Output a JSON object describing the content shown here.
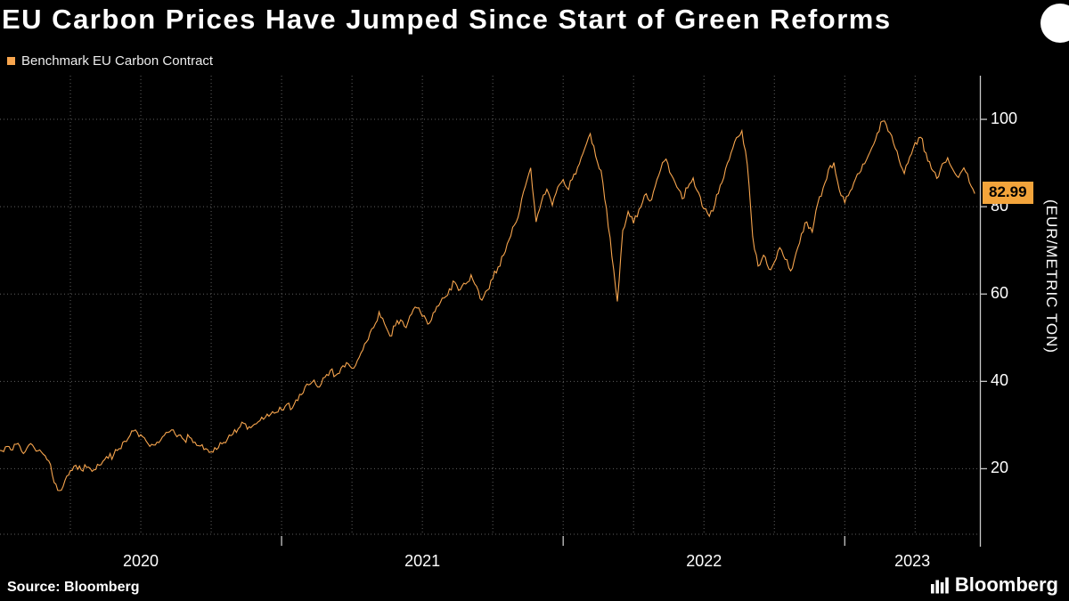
{
  "title": "EU Carbon Prices Have Jumped Since Start of Green Reforms",
  "legend": {
    "label": "Benchmark EU Carbon Contract",
    "swatch_color": "#F7A54E"
  },
  "source": "Source: Bloomberg",
  "branding": {
    "logo_text": "Bloomberg",
    "logo_icon": "bar-chart-mark"
  },
  "colors": {
    "background": "#000000",
    "text": "#ffffff",
    "grid": "#5f5f5f",
    "axis": "#c8c8c8",
    "accent_orange": "#F7A54E",
    "callout": "#F3A43B"
  },
  "chart_data": {
    "type": "line",
    "title": "EU Carbon Prices Have Jumped Since Start of Green Reforms",
    "x_unit": "decimal-year, weekly samples",
    "x_start": 2020.0,
    "x_step_years": 0.0192308,
    "xlim": [
      2020.0,
      2023.48
    ],
    "ylim": [
      5,
      110
    ],
    "y_ticks": [
      20,
      40,
      60,
      80,
      100
    ],
    "x_tick_years": [
      2020,
      2021,
      2022,
      2023
    ],
    "x_tick_labels": [
      "2020",
      "2021",
      "2022",
      "2023"
    ],
    "ylabel_right": "(EUR/METRIC TON)",
    "grid": "dotted",
    "legend_position": "top-left",
    "axis_side": "right",
    "last_price": 82.99,
    "last_price_label": "82.99",
    "series": [
      {
        "name": "Benchmark EU Carbon Contract",
        "color": "#F7A54E",
        "values": [
          24.2,
          25.0,
          24.3,
          25.6,
          24.0,
          24.8,
          25.4,
          24.1,
          23.3,
          21.8,
          16.8,
          15.0,
          17.3,
          19.6,
          20.8,
          19.7,
          20.3,
          19.4,
          21.0,
          21.7,
          22.4,
          23.2,
          24.6,
          26.3,
          27.6,
          28.9,
          27.8,
          26.3,
          25.6,
          26.1,
          27.3,
          28.3,
          28.9,
          27.7,
          26.6,
          27.2,
          26.1,
          25.2,
          24.6,
          23.9,
          24.4,
          25.7,
          26.8,
          27.9,
          29.2,
          30.4,
          29.6,
          30.2,
          31.0,
          31.8,
          32.5,
          32.9,
          33.5,
          34.8,
          33.9,
          35.6,
          37.4,
          39.2,
          40.3,
          38.7,
          40.9,
          42.5,
          41.4,
          43.1,
          44.3,
          43.0,
          44.8,
          47.2,
          49.6,
          52.3,
          55.9,
          53.2,
          50.4,
          52.7,
          54.1,
          52.3,
          55.4,
          56.8,
          54.9,
          53.1,
          55.7,
          57.3,
          59.1,
          61.2,
          62.7,
          61.0,
          62.3,
          64.4,
          61.8,
          58.6,
          60.9,
          63.5,
          66.2,
          68.9,
          72.4,
          75.8,
          79.3,
          84.6,
          88.9,
          76.5,
          81.2,
          84.0,
          80.3,
          84.5,
          86.2,
          83.9,
          87.5,
          89.8,
          93.4,
          96.7,
          91.5,
          88.3,
          79.6,
          68.5,
          58.3,
          74.6,
          78.9,
          76.2,
          79.4,
          82.6,
          81.3,
          84.7,
          88.5,
          90.9,
          87.2,
          84.5,
          81.8,
          84.3,
          86.6,
          83.2,
          79.5,
          77.8,
          80.4,
          84.9,
          88.7,
          92.3,
          95.8,
          97.4,
          89.6,
          73.2,
          66.4,
          68.9,
          65.7,
          67.3,
          70.6,
          67.9,
          65.3,
          69.4,
          73.8,
          76.5,
          74.2,
          80.7,
          84.3,
          88.5,
          90.1,
          83.8,
          80.9,
          83.6,
          86.4,
          88.2,
          90.7,
          93.5,
          96.8,
          99.6,
          97.3,
          94.5,
          90.8,
          87.6,
          91.4,
          94.7,
          95.9,
          92.3,
          88.7,
          86.5,
          89.8,
          91.2,
          88.4,
          86.7,
          88.9,
          85.6,
          82.99
        ]
      }
    ]
  }
}
